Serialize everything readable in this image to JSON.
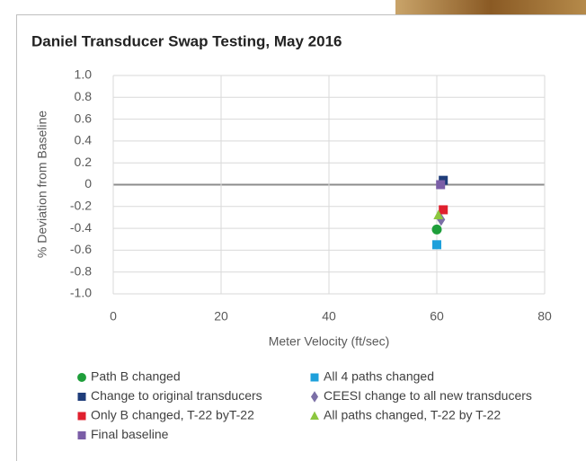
{
  "chart_data": {
    "type": "scatter",
    "title": "Daniel Transducer Swap Testing, May 2016",
    "x_label": "Meter Velocity (ft/sec)",
    "y_label": "% Deviation from Baseline",
    "xlim": [
      0,
      80
    ],
    "xticks": [
      0,
      20,
      40,
      60,
      80
    ],
    "ylim": [
      -1,
      1
    ],
    "yticks": [
      {
        "value": 1,
        "label": "1.0"
      },
      0.8,
      0.6,
      0.4,
      0.2,
      0,
      -0.2,
      -0.4,
      -0.6,
      -0.8,
      {
        "value": -1,
        "label": "-1.0"
      }
    ],
    "grid": true,
    "legend": "bottom",
    "series": [
      {
        "name": "Path B changed",
        "color": "#1e9e3a",
        "marker": "circle",
        "x": [
          60.0
        ],
        "values": [
          -0.41
        ]
      },
      {
        "name": "All 4 paths changed",
        "color": "#1ea0db",
        "marker": "square",
        "x": [
          60.0
        ],
        "values": [
          -0.55
        ]
      },
      {
        "name": "Change to original transducers",
        "color": "#1f3d7a",
        "marker": "square",
        "x": [
          61.2
        ],
        "values": [
          0.04
        ]
      },
      {
        "name": "CEESI change to all new transducers",
        "color": "#7b6fa6",
        "marker": "diamond",
        "x": [
          60.8
        ],
        "values": [
          -0.32
        ]
      },
      {
        "name": "Only B changed, T-22 byT-22",
        "color": "#e0202e",
        "marker": "square",
        "x": [
          61.2
        ],
        "values": [
          -0.23
        ]
      },
      {
        "name": "All paths changed, T-22 by T-22",
        "color": "#8cc63f",
        "marker": "triangle",
        "x": [
          60.3
        ],
        "values": [
          -0.28
        ]
      },
      {
        "name": "Final baseline",
        "color": "#7b5ea7",
        "marker": "square",
        "x": [
          60.7
        ],
        "values": [
          0.0
        ]
      }
    ]
  }
}
